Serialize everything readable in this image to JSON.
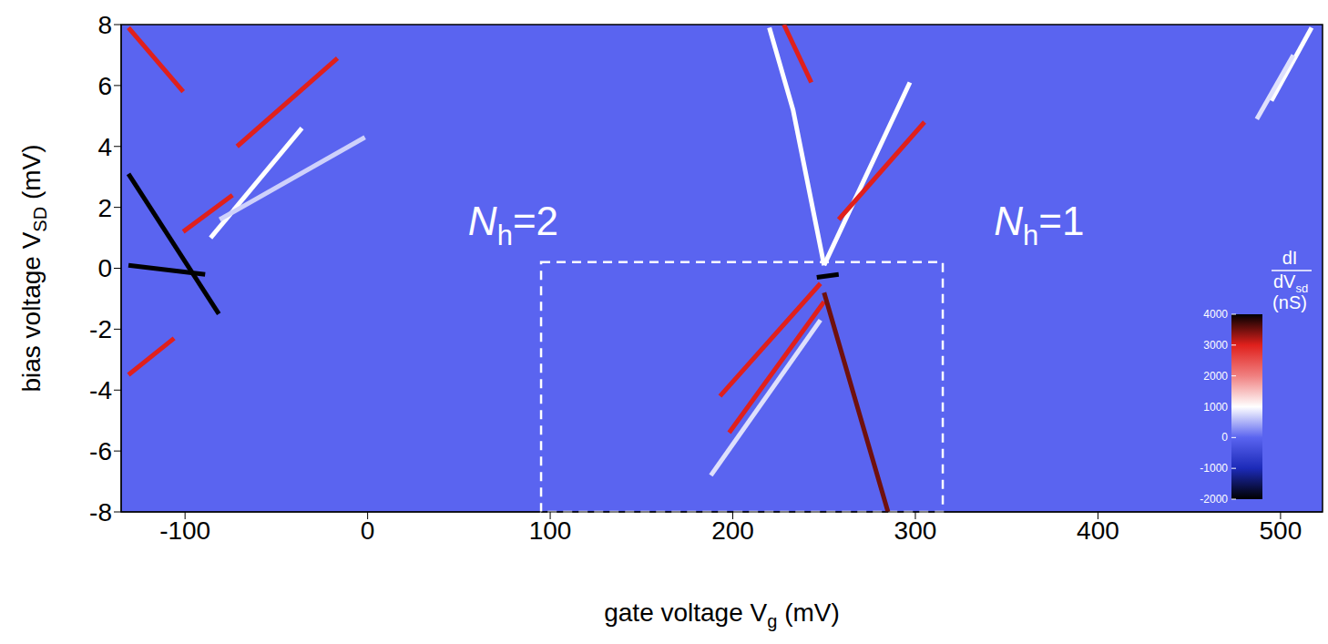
{
  "chart_data": {
    "type": "heatmap",
    "xlabel": {
      "main": "gate voltage V",
      "sub": "g",
      "tail": "(mV)"
    },
    "ylabel": {
      "main": "bias voltage V",
      "sub": "SD",
      "tail": "(mV)"
    },
    "xlim": [
      -135,
      523
    ],
    "xticks": [
      -100,
      0,
      100,
      200,
      300,
      400,
      500
    ],
    "ylim": [
      -8,
      8
    ],
    "yticks": [
      -8,
      -6,
      -4,
      -2,
      0,
      2,
      4,
      6,
      8
    ],
    "background_value": 0,
    "ridges": [
      {
        "x": [
          250,
          233,
          220
        ],
        "y": [
          0.1,
          5.2,
          7.9
        ],
        "value": 1000
      },
      {
        "x": [
          228,
          243
        ],
        "y": [
          8,
          6.1
        ],
        "value": 3000
      },
      {
        "x": [
          250,
          297
        ],
        "y": [
          0.1,
          6.1
        ],
        "value": 1000
      },
      {
        "x": [
          258,
          305
        ],
        "y": [
          1.6,
          4.8
        ],
        "value": 3000
      },
      {
        "x": [
          193,
          248
        ],
        "y": [
          -4.2,
          -0.5
        ],
        "value": 3000
      },
      {
        "x": [
          198,
          250
        ],
        "y": [
          -5.4,
          -1.1
        ],
        "value": 3000
      },
      {
        "x": [
          188,
          248
        ],
        "y": [
          -6.8,
          -1.7
        ],
        "value": 800
      },
      {
        "x": [
          250,
          285
        ],
        "y": [
          -0.8,
          -8
        ],
        "value": 3500
      },
      {
        "x": [
          246,
          258
        ],
        "y": [
          -0.3,
          -0.2
        ],
        "value": 4000
      },
      {
        "x": [
          -131,
          -81.5
        ],
        "y": [
          3.1,
          -1.5
        ],
        "value": 4000
      },
      {
        "x": [
          -131,
          -89
        ],
        "y": [
          0.1,
          -0.2
        ],
        "value": 4000
      },
      {
        "x": [
          -71.5,
          -16.5
        ],
        "y": [
          4.0,
          6.9
        ],
        "value": 3000
      },
      {
        "x": [
          -101,
          -74
        ],
        "y": [
          1.2,
          2.4
        ],
        "value": 3000
      },
      {
        "x": [
          -86,
          -36
        ],
        "y": [
          1.0,
          4.6
        ],
        "value": 1000
      },
      {
        "x": [
          -81,
          -1.5
        ],
        "y": [
          1.6,
          4.3
        ],
        "value": 700
      },
      {
        "x": [
          -131,
          -106
        ],
        "y": [
          -3.5,
          -2.3
        ],
        "value": 3000
      },
      {
        "x": [
          -131,
          -101
        ],
        "y": [
          7.9,
          5.8
        ],
        "value": 3000
      },
      {
        "x": [
          517,
          495
        ],
        "y": [
          7.9,
          5.5
        ],
        "value": 1000
      },
      {
        "x": [
          507,
          487
        ],
        "y": [
          7.0,
          4.9
        ],
        "value": 800
      }
    ],
    "annotations": [
      {
        "main": "N",
        "sub": "h",
        "tail": "=2",
        "x": 55,
        "y": 1.1
      },
      {
        "main": "N",
        "sub": "h",
        "tail": "=1",
        "x": 343,
        "y": 1.1
      }
    ],
    "box": {
      "x": [
        95,
        315
      ],
      "y": [
        -8,
        0.2
      ]
    },
    "colorbar": {
      "label": {
        "numerator": "dI",
        "denominator": "dV",
        "sub": "sd",
        "unit": "(nS)"
      },
      "zlim": [
        -2000,
        4000
      ],
      "zticks": [
        -2000,
        -1000,
        0,
        1000,
        2000,
        3000,
        4000
      ]
    }
  }
}
